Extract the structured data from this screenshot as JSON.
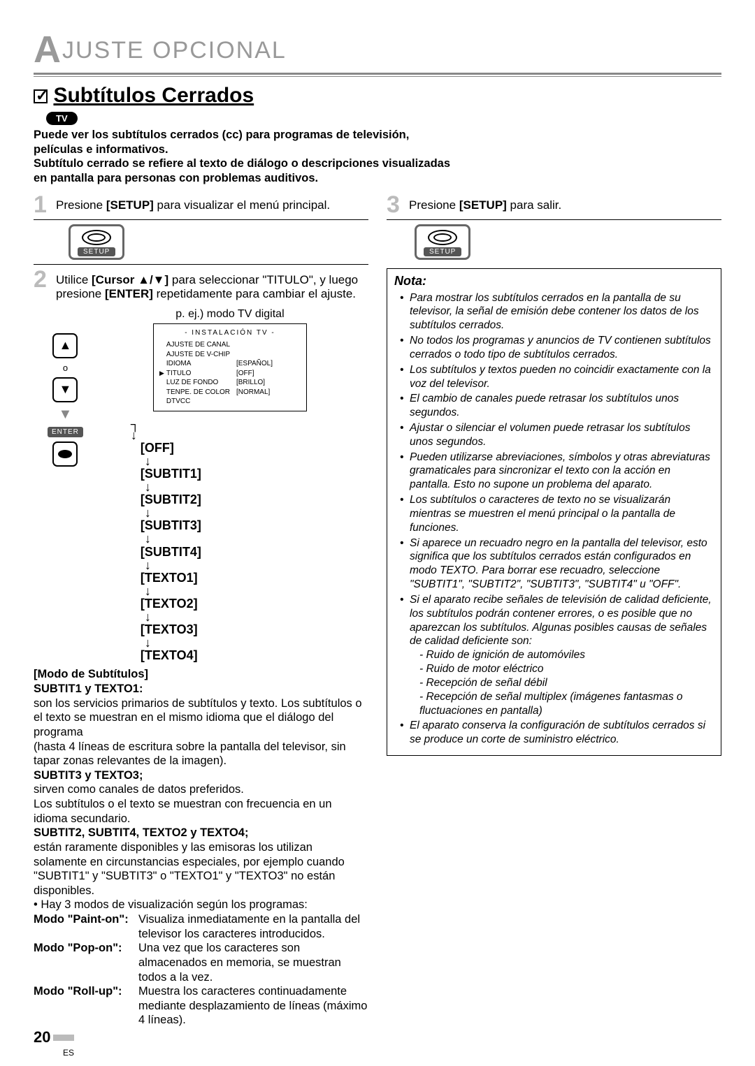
{
  "header": {
    "prefix": "A",
    "rest": "JUSTE   OPCIONAL"
  },
  "section": {
    "title": "Subtítulos Cerrados",
    "badge": "TV"
  },
  "intro": {
    "l1": "Puede ver los subtítulos cerrados (cc) para programas de televisión, películas e informativos.",
    "l2": "Subtítulo cerrado se refiere al texto de diálogo o descripciones visualizadas en pantalla para personas con problemas auditivos."
  },
  "steps": {
    "s1": {
      "num": "1",
      "pre": "Presione ",
      "key": "[SETUP]",
      "post": " para visualizar el menú principal."
    },
    "s2": {
      "num": "2",
      "pre": "Utilice ",
      "key": "[Cursor ▲/▼]",
      "mid": " para seleccionar \"TITULO\", y luego presione ",
      "key2": "[ENTER]",
      "post": " repetidamente para cambiar el ajuste."
    },
    "s3": {
      "num": "3",
      "pre": "Presione ",
      "key": "[SETUP]",
      "post": " para salir."
    }
  },
  "remote": {
    "o": "o",
    "enter": "ENTER"
  },
  "setup_label": "SETUP",
  "menu": {
    "ej": "p. ej.) modo TV digital",
    "title": "-   INSTALACIÓN TV   -",
    "rows": [
      {
        "l": "AJUSTE DE CANAL",
        "r": ""
      },
      {
        "l": "AJUSTE DE V-CHIP",
        "r": ""
      },
      {
        "l": "IDIOMA",
        "r": "[ESPAÑOL]"
      },
      {
        "l": "TITULO",
        "r": "[OFF]",
        "sel": true
      },
      {
        "l": "LUZ DE FONDO",
        "r": "[BRILLO]"
      },
      {
        "l": "TENPE. DE COLOR",
        "r": "[NORMAL]"
      },
      {
        "l": "DTVCC",
        "r": ""
      }
    ]
  },
  "flow": [
    "[OFF]",
    "[SUBTIT1]",
    "[SUBTIT2]",
    "[SUBTIT3]",
    "[SUBTIT4]",
    "[TEXTO1]",
    "[TEXTO2]",
    "[TEXTO3]",
    "[TEXTO4]"
  ],
  "modo": {
    "h1": "[Modo de Subtítulos]",
    "h2": "SUBTIT1 y TEXTO1:",
    "p1": "son los servicios primarios de subtítulos y texto. Los subtítulos o el texto se muestran en el mismo idioma que el diálogo del programa",
    "p1b": "(hasta 4 líneas de escritura sobre la pantalla del televisor, sin tapar zonas relevantes de la imagen).",
    "h3": "SUBTIT3 y TEXTO3;",
    "p2": "sirven como canales de datos preferidos.",
    "p2b": "Los subtítulos o el texto se muestran con frecuencia en un idioma secundario.",
    "h4": "SUBTIT2, SUBTIT4, TEXTO2 y TEXTO4;",
    "p3": "están raramente disponibles y las emisoras los utilizan solamente en circunstancias especiales, por ejemplo cuando \"SUBTIT1\" y \"SUBTIT3\" o \"TEXTO1\" y \"TEXTO3\" no están disponibles.",
    "bullet": "• Hay 3 modos de visualización según los programas:",
    "m1k": "Modo \"Paint-on\":",
    "m1v": "Visualiza inmediatamente en la pantalla del televisor los caracteres introducidos.",
    "m2k": "Modo \"Pop-on\":",
    "m2v": "Una vez que los caracteres son almacenados en memoria, se muestran todos a la vez.",
    "m3k": "Modo \"Roll-up\":",
    "m3v": "Muestra los caracteres continuadamente mediante desplazamiento de líneas (máximo 4 líneas)."
  },
  "nota": {
    "title": "Nota:",
    "items": [
      "Para mostrar los subtítulos cerrados en la pantalla de su televisor, la señal de emisión debe contener los datos de los subtítulos cerrados.",
      "No todos los programas y anuncios de TV contienen subtítulos cerrados o todo tipo de subtítulos cerrados.",
      "Los subtítulos y textos pueden no coincidir exactamente con la voz del televisor.",
      "El cambio de canales puede retrasar los subtítulos unos segundos.",
      "Ajustar o silenciar el volumen puede retrasar los subtítulos unos segundos.",
      "Pueden utilizarse abreviaciones, símbolos y otras abreviaturas gramaticales para sincronizar el texto con la acción en pantalla. Esto no supone un problema del aparato.",
      "Los subtítulos o caracteres de texto no se visualizarán mientras se muestren el menú principal o la pantalla de funciones.",
      "Si aparece un recuadro negro en la pantalla del televisor, esto significa que los subtítulos cerrados están configurados en modo TEXTO. Para borrar ese recuadro, seleccione \"SUBTIT1\", \"SUBTIT2\", \"SUBTIT3\", \"SUBTIT4\" u \"OFF\".",
      "Si el aparato recibe señales de televisión de calidad deficiente, los subtítulos podrán contener errores, o es posible que no aparezcan los subtítulos. Algunas posibles causas de señales de calidad deficiente son:"
    ],
    "subs": [
      "Ruido de ignición de automóviles",
      "Ruido de motor eléctrico",
      "Recepción de señal débil",
      "Recepción de señal multiplex (imágenes fantasmas o fluctuaciones en pantalla)"
    ],
    "last": "El aparato conserva la configuración de subtítulos cerrados si se produce un corte de suministro eléctrico."
  },
  "page": {
    "num": "20",
    "es": "ES"
  }
}
